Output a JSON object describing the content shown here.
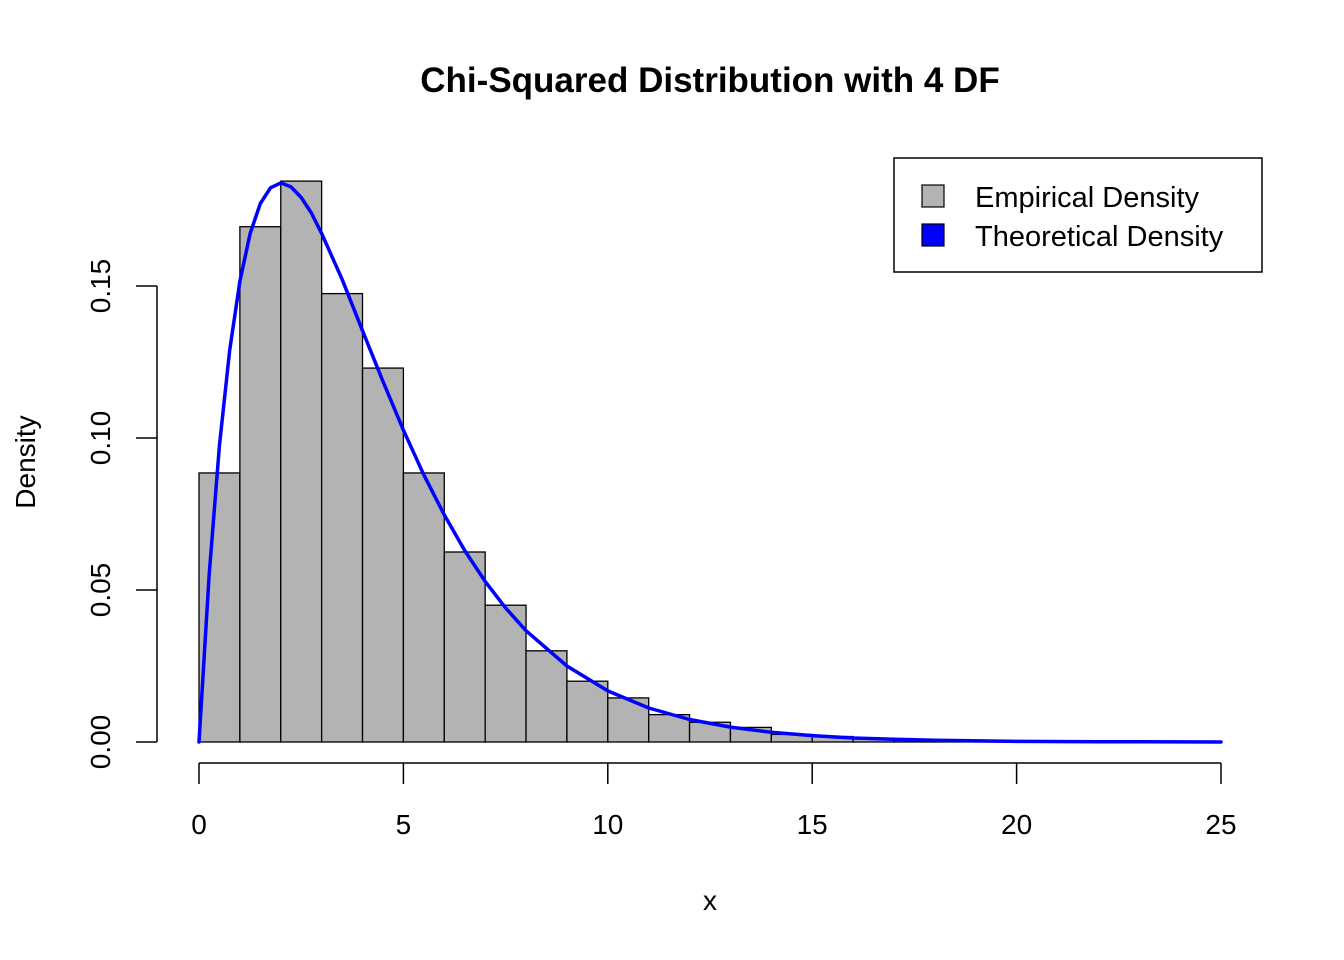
{
  "chart_data": {
    "type": "bar",
    "title": "Chi-Squared Distribution with 4 DF",
    "xlabel": "x",
    "ylabel": "Density",
    "xlim": [
      0,
      25
    ],
    "ylim": [
      0,
      0.185
    ],
    "x_ticks": [
      0,
      5,
      10,
      15,
      20,
      25
    ],
    "x_tick_labels": [
      "0",
      "5",
      "10",
      "15",
      "20",
      "25"
    ],
    "y_ticks": [
      0,
      0.05,
      0.1,
      0.15
    ],
    "y_tick_labels": [
      "0.00",
      "0.05",
      "0.10",
      "0.15"
    ],
    "grid": false,
    "legend_position": "top-right",
    "series": [
      {
        "name": "Empirical Density",
        "kind": "histogram",
        "color": "#b3b3b3",
        "bins": [
          {
            "x0": 0,
            "x1": 1,
            "value": 0.0885
          },
          {
            "x0": 1,
            "x1": 2,
            "value": 0.1695
          },
          {
            "x0": 2,
            "x1": 3,
            "value": 0.1845
          },
          {
            "x0": 3,
            "x1": 4,
            "value": 0.1475
          },
          {
            "x0": 4,
            "x1": 5,
            "value": 0.123
          },
          {
            "x0": 5,
            "x1": 6,
            "value": 0.0885
          },
          {
            "x0": 6,
            "x1": 7,
            "value": 0.0625
          },
          {
            "x0": 7,
            "x1": 8,
            "value": 0.045
          },
          {
            "x0": 8,
            "x1": 9,
            "value": 0.03
          },
          {
            "x0": 9,
            "x1": 10,
            "value": 0.02
          },
          {
            "x0": 10,
            "x1": 11,
            "value": 0.0145
          },
          {
            "x0": 11,
            "x1": 12,
            "value": 0.009
          },
          {
            "x0": 12,
            "x1": 13,
            "value": 0.0065
          },
          {
            "x0": 13,
            "x1": 14,
            "value": 0.0048
          },
          {
            "x0": 14,
            "x1": 15,
            "value": 0.0025
          },
          {
            "x0": 15,
            "x1": 16,
            "value": 0.0018
          },
          {
            "x0": 16,
            "x1": 17,
            "value": 0.001
          },
          {
            "x0": 17,
            "x1": 18,
            "value": 0.0005
          },
          {
            "x0": 18,
            "x1": 19,
            "value": 0.0003
          },
          {
            "x0": 19,
            "x1": 20,
            "value": 0.0002
          },
          {
            "x0": 20,
            "x1": 21,
            "value": 0.0001
          }
        ]
      },
      {
        "name": "Theoretical Density",
        "kind": "line",
        "color": "#0000ff",
        "x": [
          0,
          0.25,
          0.5,
          0.75,
          1,
          1.25,
          1.5,
          1.75,
          2,
          2.25,
          2.5,
          2.75,
          3,
          3.5,
          4,
          4.5,
          5,
          5.5,
          6,
          6.5,
          7,
          7.5,
          8,
          9,
          10,
          11,
          12,
          13,
          14,
          15,
          16,
          17,
          18,
          20,
          22,
          25
        ],
        "y": [
          0,
          0.0552,
          0.0974,
          0.1289,
          0.1516,
          0.1672,
          0.1771,
          0.1823,
          0.1839,
          0.1826,
          0.1791,
          0.174,
          0.1673,
          0.1522,
          0.1353,
          0.1186,
          0.1026,
          0.0879,
          0.0747,
          0.063,
          0.0528,
          0.0441,
          0.0366,
          0.025,
          0.0168,
          0.0112,
          0.0074,
          0.0049,
          0.0032,
          0.0021,
          0.0013,
          0.0009,
          0.0006,
          0.0002,
          0.0001,
          0.0
        ]
      }
    ]
  }
}
